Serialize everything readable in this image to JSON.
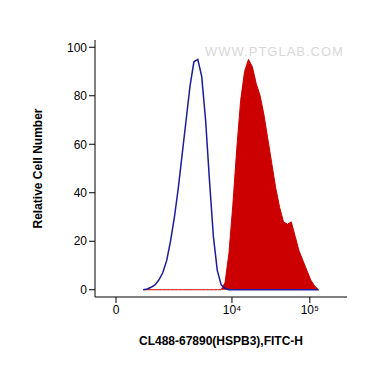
{
  "chart_data": {
    "type": "area",
    "x_label": "CL488-67890(HSPB3),FITC-H",
    "y_label": "Relative Cell Number",
    "annotations": [
      "WWW.PTGLAB.COM"
    ],
    "log": "x",
    "xlim": [
      -430,
      300000
    ],
    "xticks": [
      0,
      {
        "value": 10000,
        "label": "10⁴"
      },
      {
        "value": 100000,
        "label": "10⁵"
      }
    ],
    "ylim": [
      -3,
      103
    ],
    "yticks": [
      0,
      20,
      40,
      60,
      80,
      100
    ],
    "x": [
      583,
      687,
      800,
      925,
      1061,
      1212,
      1379,
      1564,
      1770,
      1999,
      2255,
      2541,
      2860,
      3218,
      3617,
      4066,
      4568,
      5130,
      5761,
      6468,
      7261,
      8151,
      9144,
      10267,
      11525,
      12929,
      14515,
      16283,
      18272,
      20501,
      23004,
      25812,
      28964,
      32500,
      36465,
      40918,
      45903,
      51513,
      57785,
      64838,
      72735,
      81640,
      91585,
      102765,
      115310,
      129383
    ],
    "series": [
      {
        "type": "line",
        "color": "#1c1c9c",
        "values": [
          0,
          0.3,
          1,
          2,
          4,
          7,
          12,
          20,
          30,
          42,
          56,
          70,
          84,
          94,
          95,
          88,
          70,
          45,
          22,
          8,
          2,
          0.5,
          0,
          0,
          0,
          0,
          0,
          0,
          0,
          0,
          0,
          0,
          0,
          0,
          0,
          0,
          0,
          0,
          0,
          0,
          0,
          0,
          0,
          0,
          0,
          0
        ]
      },
      {
        "type": "area",
        "color": "#cc0000",
        "values": [
          0,
          0,
          0,
          0,
          0,
          0,
          0,
          0,
          0,
          0,
          0,
          0,
          0,
          0,
          0,
          0,
          0,
          0,
          0,
          0,
          0,
          3,
          15,
          35,
          58,
          78,
          90,
          95,
          92,
          85,
          80,
          72,
          62,
          52,
          42,
          34,
          28,
          27,
          28,
          22,
          16,
          12,
          8,
          4,
          1.5,
          0
        ]
      }
    ]
  }
}
